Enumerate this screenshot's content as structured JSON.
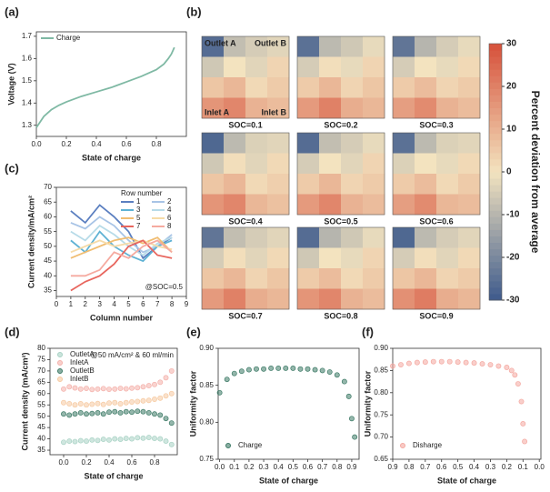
{
  "chart_data": [
    {
      "panel": "(a)",
      "type": "line",
      "x_label": "State of charge",
      "y_label": "Voltage (V)",
      "legend": "upper left",
      "x": [
        0,
        0.02,
        0.05,
        0.1,
        0.15,
        0.2,
        0.3,
        0.4,
        0.5,
        0.6,
        0.7,
        0.8,
        0.85,
        0.88,
        0.9,
        0.92
      ],
      "series": [
        {
          "name": "Charge",
          "color": "#7fb9a4",
          "values": [
            1.29,
            1.31,
            1.34,
            1.37,
            1.39,
            1.405,
            1.43,
            1.45,
            1.47,
            1.495,
            1.52,
            1.55,
            1.575,
            1.6,
            1.62,
            1.65
          ]
        }
      ],
      "xlim": [
        0,
        1.0
      ],
      "xticks": [
        {
          "value": 0,
          "label": "0.0"
        },
        0.2,
        0.4,
        0.6,
        0.8
      ],
      "ylim": [
        1.25,
        1.72
      ],
      "yticks": [
        1.3,
        1.4,
        1.5,
        1.6,
        1.7
      ]
    },
    {
      "panel": "(b)",
      "type": "heatmap",
      "colorbar_label": "Percent deviation from average",
      "colormap": [
        "#3d5a8c",
        "#f3e3bf",
        "#d6503a"
      ],
      "zlim": [
        -30,
        30
      ],
      "zticks": [
        -30,
        -20,
        -10,
        0,
        10,
        20,
        30
      ],
      "annotations": [
        "Outlet A",
        "Outlet B",
        "Inlet A",
        "Inlet B"
      ],
      "maps": [
        {
          "label": "SOC=0.1",
          "values": [
            [
              -26,
              -8,
              -5,
              -3
            ],
            [
              -6,
              0,
              -3,
              3
            ],
            [
              6,
              9,
              2,
              5
            ],
            [
              16,
              19,
              10,
              8
            ]
          ]
        },
        {
          "label": "SOC=0.2",
          "values": [
            [
              -25,
              -9,
              -6,
              -2
            ],
            [
              -5,
              1,
              -2,
              3
            ],
            [
              5,
              9,
              3,
              6
            ],
            [
              15,
              20,
              11,
              9
            ]
          ]
        },
        {
          "label": "SOC=0.3",
          "values": [
            [
              -24,
              -10,
              -5,
              -2
            ],
            [
              -5,
              0,
              -2,
              2
            ],
            [
              5,
              8,
              3,
              5
            ],
            [
              14,
              18,
              10,
              8
            ]
          ]
        },
        {
          "label": "SOC=0.4",
          "values": [
            [
              -27,
              -9,
              -4,
              -3
            ],
            [
              -6,
              1,
              -3,
              2
            ],
            [
              6,
              9,
              2,
              4
            ],
            [
              16,
              19,
              9,
              7
            ]
          ]
        },
        {
          "label": "SOC=0.5",
          "values": [
            [
              -26,
              -8,
              -5,
              -2
            ],
            [
              -5,
              0,
              -3,
              3
            ],
            [
              5,
              9,
              3,
              5
            ],
            [
              15,
              19,
              10,
              8
            ]
          ]
        },
        {
          "label": "SOC=0.6",
          "values": [
            [
              -25,
              -9,
              -4,
              -3
            ],
            [
              -4,
              0,
              -2,
              2
            ],
            [
              5,
              8,
              2,
              5
            ],
            [
              14,
              18,
              9,
              8
            ]
          ]
        },
        {
          "label": "SOC=0.7",
          "values": [
            [
              -24,
              -8,
              -5,
              -3
            ],
            [
              -5,
              1,
              -3,
              2
            ],
            [
              6,
              9,
              3,
              6
            ],
            [
              15,
              20,
              11,
              9
            ]
          ]
        },
        {
          "label": "SOC=0.8",
          "values": [
            [
              -26,
              -10,
              -6,
              -2
            ],
            [
              -6,
              0,
              -2,
              3
            ],
            [
              5,
              8,
              2,
              5
            ],
            [
              16,
              19,
              10,
              8
            ]
          ]
        },
        {
          "label": "SOC=0.9",
          "values": [
            [
              -27,
              -9,
              -5,
              -3
            ],
            [
              -5,
              1,
              -3,
              2
            ],
            [
              6,
              9,
              3,
              5
            ],
            [
              17,
              21,
              11,
              9
            ]
          ]
        }
      ]
    },
    {
      "panel": "(c)",
      "type": "line",
      "x_label": "Column number",
      "y_label": "Current density/mA/cm²",
      "legend": "upper right",
      "legend_title": "Row number",
      "annotation": "@SOC=0.5",
      "x": [
        1,
        2,
        3,
        4,
        5,
        6,
        7,
        8
      ],
      "series": [
        {
          "name": "1",
          "color": "#5b7fc0",
          "values": [
            62,
            58,
            64,
            60,
            55,
            46,
            50,
            53
          ]
        },
        {
          "name": "2",
          "color": "#a8c4e6",
          "values": [
            58,
            56,
            60,
            57,
            52,
            48,
            50,
            54
          ]
        },
        {
          "name": "3",
          "color": "#5fb2d4",
          "values": [
            52,
            48,
            55,
            50,
            47,
            45,
            50,
            52
          ]
        },
        {
          "name": "4",
          "color": "#b7dbe8",
          "values": [
            55,
            52,
            57,
            54,
            50,
            47,
            51,
            53
          ]
        },
        {
          "name": "5",
          "color": "#f0bd72",
          "values": [
            46,
            48,
            50,
            52,
            53,
            51,
            53,
            48
          ]
        },
        {
          "name": "6",
          "color": "#f6dba8",
          "values": [
            48,
            50,
            52,
            50,
            51,
            52,
            50,
            49
          ]
        },
        {
          "name": "7",
          "color": "#e8665e",
          "values": [
            35,
            38,
            40,
            44,
            50,
            52,
            47,
            46
          ]
        },
        {
          "name": "8",
          "color": "#f5aaa0",
          "values": [
            40,
            40,
            42,
            48,
            46,
            50,
            52,
            48
          ]
        }
      ],
      "xlim": [
        0,
        9
      ],
      "xticks": [
        0,
        1,
        2,
        3,
        4,
        5,
        6,
        7,
        8,
        9
      ],
      "ylim": [
        33,
        70
      ],
      "yticks": [
        35,
        40,
        45,
        50,
        55,
        60,
        65,
        70
      ]
    },
    {
      "panel": "(d)",
      "type": "scatter",
      "x_label": "State of charge",
      "y_label": "Current density (mA/cm²)",
      "legend": "upper left",
      "annotation": "@50 mA/cm² & 60 ml/min",
      "x": [
        0,
        0.05,
        0.1,
        0.15,
        0.2,
        0.25,
        0.3,
        0.35,
        0.4,
        0.45,
        0.5,
        0.55,
        0.6,
        0.65,
        0.7,
        0.75,
        0.8,
        0.85,
        0.9,
        0.95
      ],
      "series": [
        {
          "name": "OutletA",
          "color": "#a8d2c4",
          "values": [
            38.5,
            39,
            38.8,
            39.2,
            39,
            39.5,
            39.3,
            39.8,
            39.5,
            40,
            39.8,
            40.2,
            40,
            40.5,
            40.3,
            40.6,
            40.2,
            40,
            39,
            37.5
          ]
        },
        {
          "name": "InletA",
          "color": "#f4b0aa",
          "values": [
            62,
            63,
            62.5,
            62,
            62.3,
            61.8,
            62,
            62.2,
            61.9,
            62,
            62.3,
            62.1,
            62.4,
            62.6,
            63,
            63.5,
            64,
            65,
            67,
            70
          ]
        },
        {
          "name": "OutletB",
          "color": "#3d7a66",
          "values": [
            51,
            50.5,
            51,
            51.5,
            51,
            51.2,
            51.5,
            51,
            51.8,
            52,
            51.5,
            52,
            51.8,
            52.2,
            52,
            51.5,
            51,
            50.5,
            49,
            47
          ]
        },
        {
          "name": "InletB",
          "color": "#f6c9a0",
          "values": [
            56,
            55.5,
            55,
            55.5,
            55,
            55.3,
            55.6,
            55.2,
            55.8,
            56,
            55.5,
            56,
            56.3,
            56.5,
            56.8,
            57,
            57.5,
            58,
            59,
            60
          ]
        }
      ],
      "xlim": [
        -0.12,
        1.0
      ],
      "xticks": [
        {
          "value": 0,
          "label": "0.0"
        },
        0.2,
        0.4,
        0.6,
        0.8
      ],
      "ylim": [
        33,
        80
      ],
      "yticks": [
        35,
        40,
        45,
        50,
        55,
        60,
        65,
        70,
        75,
        80
      ]
    },
    {
      "panel": "(e)",
      "type": "scatter",
      "x_label": "State of charge",
      "y_label": "Uniformity factor",
      "legend": "lower left",
      "x": [
        0,
        0.05,
        0.1,
        0.15,
        0.2,
        0.25,
        0.3,
        0.35,
        0.4,
        0.45,
        0.5,
        0.55,
        0.6,
        0.65,
        0.7,
        0.75,
        0.8,
        0.85,
        0.88,
        0.9,
        0.92
      ],
      "series": [
        {
          "name": "Charge",
          "color": "#3d7a66",
          "values": [
            0.84,
            0.858,
            0.866,
            0.869,
            0.871,
            0.872,
            0.872,
            0.873,
            0.873,
            0.873,
            0.873,
            0.872,
            0.872,
            0.871,
            0.87,
            0.868,
            0.864,
            0.855,
            0.835,
            0.805,
            0.78
          ]
        }
      ],
      "xlim": [
        -0.01,
        0.95
      ],
      "xticks": [
        {
          "value": 0,
          "label": "0.0"
        },
        0.1,
        0.2,
        0.3,
        0.4,
        0.5,
        0.6,
        0.7,
        0.8,
        0.9
      ],
      "ylim": [
        0.75,
        0.9
      ],
      "yticks": [
        0.75,
        {
          "value": 0.8,
          "label": "0.80"
        },
        0.85,
        {
          "value": 0.9,
          "label": "0.90"
        }
      ]
    },
    {
      "panel": "(f)",
      "type": "scatter",
      "x_label": "State of charge",
      "y_label": "Uniformity factor",
      "legend": "lower left",
      "x": [
        0.9,
        0.85,
        0.8,
        0.75,
        0.7,
        0.65,
        0.6,
        0.55,
        0.5,
        0.45,
        0.4,
        0.35,
        0.3,
        0.25,
        0.2,
        0.17,
        0.15,
        0.13,
        0.11,
        0.1,
        0.09
      ],
      "series": [
        {
          "name": "Disharge",
          "color": "#f4a8a0",
          "values": [
            0.86,
            0.863,
            0.866,
            0.868,
            0.869,
            0.87,
            0.87,
            0.87,
            0.869,
            0.868,
            0.867,
            0.865,
            0.863,
            0.86,
            0.857,
            0.85,
            0.84,
            0.82,
            0.78,
            0.73,
            0.69
          ]
        }
      ],
      "xlim": [
        0.9,
        -0.01
      ],
      "xticks": [
        0.9,
        0.8,
        0.7,
        0.6,
        0.5,
        0.4,
        0.3,
        0.2,
        0.1,
        {
          "value": 0,
          "label": "0.0"
        }
      ],
      "ylim": [
        0.65,
        0.9
      ],
      "yticks": [
        0.65,
        {
          "value": 0.7,
          "label": "0.70"
        },
        0.75,
        {
          "value": 0.8,
          "label": "0.80"
        },
        0.85,
        {
          "value": 0.9,
          "label": "0.90"
        }
      ]
    }
  ]
}
